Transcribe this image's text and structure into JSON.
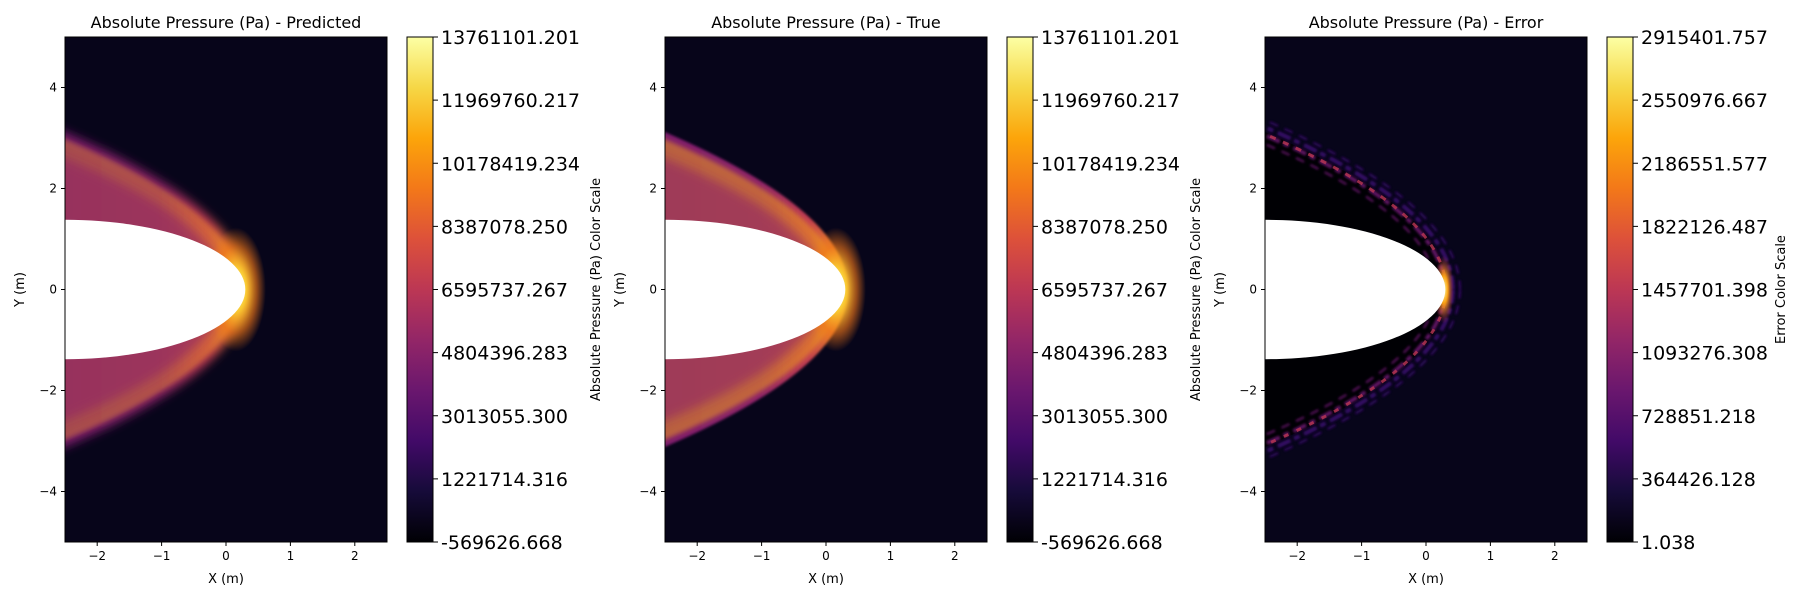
{
  "chart_data": [
    {
      "type": "heatmap",
      "title": "Absolute Pressure (Pa) - Predicted",
      "xlabel": "X (m)",
      "ylabel": "Y (m)",
      "xlim": [
        -2.5,
        2.5
      ],
      "ylim": [
        -5,
        5
      ],
      "xticks": [
        "−2",
        "−1",
        "0",
        "1",
        "2"
      ],
      "yticks": [
        "−4",
        "−2",
        "0",
        "2",
        "4"
      ],
      "colormap": "inferno",
      "colorbar": {
        "label": "Absolute Pressure (Pa) Color Scale",
        "range": [
          -569626.668,
          13761101.201
        ],
        "ticks": [
          "13761101.201",
          "11969760.217",
          "10178419.234",
          "8387078.250",
          "6595737.267",
          "4804396.283",
          "3013055.300",
          "1221714.316",
          "-569626.668"
        ]
      },
      "field": "smooth bow shock in front of elliptical body (white region), peak pressure at stagnation point near x=0.3, y=0"
    },
    {
      "type": "heatmap",
      "title": "Absolute Pressure (Pa) - True",
      "xlabel": "X (m)",
      "ylabel": "Y (m)",
      "xlim": [
        -2.5,
        2.5
      ],
      "ylim": [
        -5,
        5
      ],
      "xticks": [
        "−2",
        "−1",
        "0",
        "1",
        "2"
      ],
      "yticks": [
        "−4",
        "−2",
        "0",
        "2",
        "4"
      ],
      "colormap": "inferno",
      "colorbar": {
        "label": "Absolute Pressure (Pa) Color Scale",
        "range": [
          -569626.668,
          13761101.201
        ],
        "ticks": [
          "13761101.201",
          "11969760.217",
          "10178419.234",
          "8387078.250",
          "6595737.267",
          "4804396.283",
          "3013055.300",
          "1221714.316",
          "-569626.668"
        ]
      },
      "field": "sharp bow shock in front of elliptical body, peak pressure at stagnation point near x=0.3, y=0"
    },
    {
      "type": "heatmap",
      "title": "Absolute Pressure (Pa) - Error",
      "xlabel": "X (m)",
      "ylabel": "Y (m)",
      "xlim": [
        -2.5,
        2.5
      ],
      "ylim": [
        -5,
        5
      ],
      "xticks": [
        "−2",
        "−1",
        "0",
        "1",
        "2"
      ],
      "yticks": [
        "−4",
        "−2",
        "0",
        "2",
        "4"
      ],
      "colormap": "inferno",
      "colorbar": {
        "label": "Error Color Scale",
        "range": [
          1.038,
          2915401.757
        ],
        "ticks": [
          "2915401.757",
          "2550976.667",
          "2186551.577",
          "1822126.487",
          "1457701.398",
          "1093276.308",
          "728851.218",
          "364426.128",
          "1.038"
        ]
      },
      "field": "error concentrated along the shock front, largest near x=0.3, y=0"
    }
  ]
}
